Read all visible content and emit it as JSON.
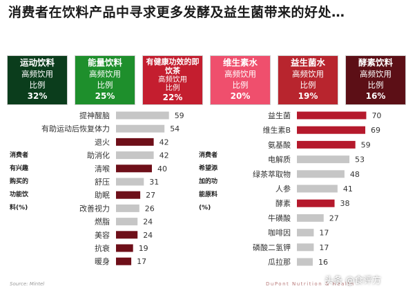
{
  "title": "消费者在饮料产品中寻求更多发酵及益生菌带来的好处…",
  "tiles": [
    {
      "name": "运动饮料",
      "sub1": "高频饮用",
      "sub2": "比例",
      "pct": "32%",
      "color": "#0b3d1c",
      "small": false
    },
    {
      "name": "能量饮料",
      "sub1": "高频饮用",
      "sub2": "比例",
      "pct": "25%",
      "color": "#1e8f2c",
      "small": false
    },
    {
      "name": "有健康功效的即饮茶",
      "sub1": "高频饮用",
      "sub2": "比例",
      "pct": "22%",
      "color": "#c41e2f",
      "small": true
    },
    {
      "name": "维生素水",
      "sub1": "高频饮用",
      "sub2": "比例",
      "pct": "20%",
      "color": "#ef4f6d",
      "small": false
    },
    {
      "name": "益生菌水",
      "sub1": "高频饮用",
      "sub2": "比例",
      "pct": "19%",
      "color": "#b8252e",
      "small": false
    },
    {
      "name": "酵素饮料",
      "sub1": "高频饮用",
      "sub2": "比例",
      "pct": "16%",
      "color": "#5c0f16",
      "small": false
    }
  ],
  "left_side_label": [
    "消费者",
    "有兴趣",
    "购买的",
    "功能饮",
    "料(%)"
  ],
  "right_side_label": [
    "消费者",
    "希望添",
    "加的功",
    "能原料",
    "(%)"
  ],
  "colors": {
    "grey": "#c6c6c6",
    "red": "#b5192c",
    "darkred": "#6e0f19"
  },
  "chart_data": [
    {
      "type": "bar",
      "orientation": "horizontal",
      "categories": [
        "提神醒脑",
        "有助运动后恢复体力",
        "退火",
        "助消化",
        "清喉",
        "舒压",
        "助眠",
        "改善视力",
        "燃脂",
        "美容",
        "抗衰",
        "暖身"
      ],
      "values": [
        59,
        54,
        42,
        42,
        40,
        31,
        27,
        26,
        24,
        24,
        19,
        17
      ],
      "bar_colors": [
        "grey",
        "grey",
        "darkred",
        "grey",
        "darkred",
        "grey",
        "darkred",
        "grey",
        "grey",
        "darkred",
        "darkred",
        "darkred"
      ],
      "xlim": [
        0,
        60
      ]
    },
    {
      "type": "bar",
      "orientation": "horizontal",
      "categories": [
        "益生菌",
        "维生素B",
        "氨基酸",
        "电解质",
        "绿茶萃取物",
        "人参",
        "酵素",
        "牛磺酸",
        "咖啡因",
        "磷酸二氢钾",
        "瓜拉那"
      ],
      "values": [
        70,
        69,
        59,
        53,
        48,
        41,
        38,
        27,
        17,
        17,
        16
      ],
      "bar_colors": [
        "red",
        "red",
        "red",
        "grey",
        "grey",
        "grey",
        "red",
        "grey",
        "grey",
        "grey",
        "grey"
      ],
      "xlim": [
        0,
        70
      ]
    }
  ],
  "footer": {
    "source": "Source: Mintel",
    "brand": "DuPont Nutrition & Health"
  },
  "watermark": "头条 @食评方"
}
